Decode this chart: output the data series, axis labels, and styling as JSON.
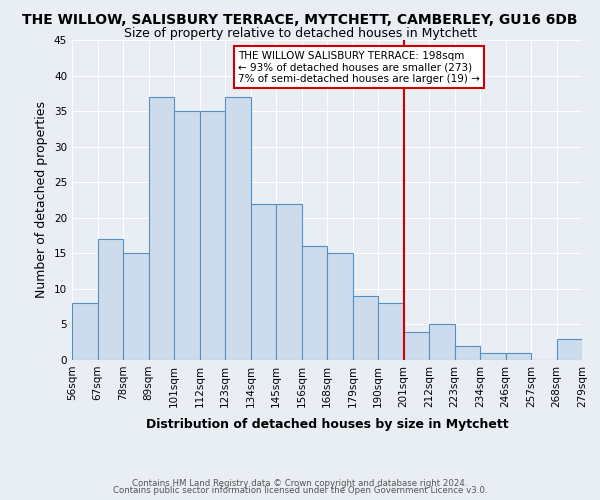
{
  "title": "THE WILLOW, SALISBURY TERRACE, MYTCHETT, CAMBERLEY, GU16 6DB",
  "subtitle": "Size of property relative to detached houses in Mytchett",
  "xlabel": "Distribution of detached houses by size in Mytchett",
  "ylabel": "Number of detached properties",
  "bar_color": "#ccdcec",
  "bar_edge_color": "#5590c0",
  "bin_labels": [
    "56sqm",
    "67sqm",
    "78sqm",
    "89sqm",
    "101sqm",
    "112sqm",
    "123sqm",
    "134sqm",
    "145sqm",
    "156sqm",
    "168sqm",
    "179sqm",
    "190sqm",
    "201sqm",
    "212sqm",
    "223sqm",
    "234sqm",
    "246sqm",
    "257sqm",
    "268sqm",
    "279sqm"
  ],
  "bar_heights": [
    8,
    17,
    15,
    37,
    35,
    35,
    37,
    22,
    22,
    16,
    15,
    9,
    8,
    4,
    5,
    2,
    1,
    1,
    0,
    3
  ],
  "vline_label_idx": 13,
  "vline_color": "#cc0000",
  "annotation_title": "THE WILLOW SALISBURY TERRACE: 198sqm",
  "annotation_line1": "← 93% of detached houses are smaller (273)",
  "annotation_line2": "7% of semi-detached houses are larger (19) →",
  "yticks": [
    0,
    5,
    10,
    15,
    20,
    25,
    30,
    35,
    40,
    45
  ],
  "ylim": [
    0,
    45
  ],
  "footnote1": "Contains HM Land Registry data © Crown copyright and database right 2024.",
  "footnote2": "Contains public sector information licensed under the Open Government Licence v3.0.",
  "background_color": "#e8eef4",
  "plot_bg_color": "#e8eef4",
  "grid_color": "#ffffff",
  "title_fontsize": 10,
  "subtitle_fontsize": 9,
  "axis_label_fontsize": 9,
  "tick_fontsize": 7.5
}
